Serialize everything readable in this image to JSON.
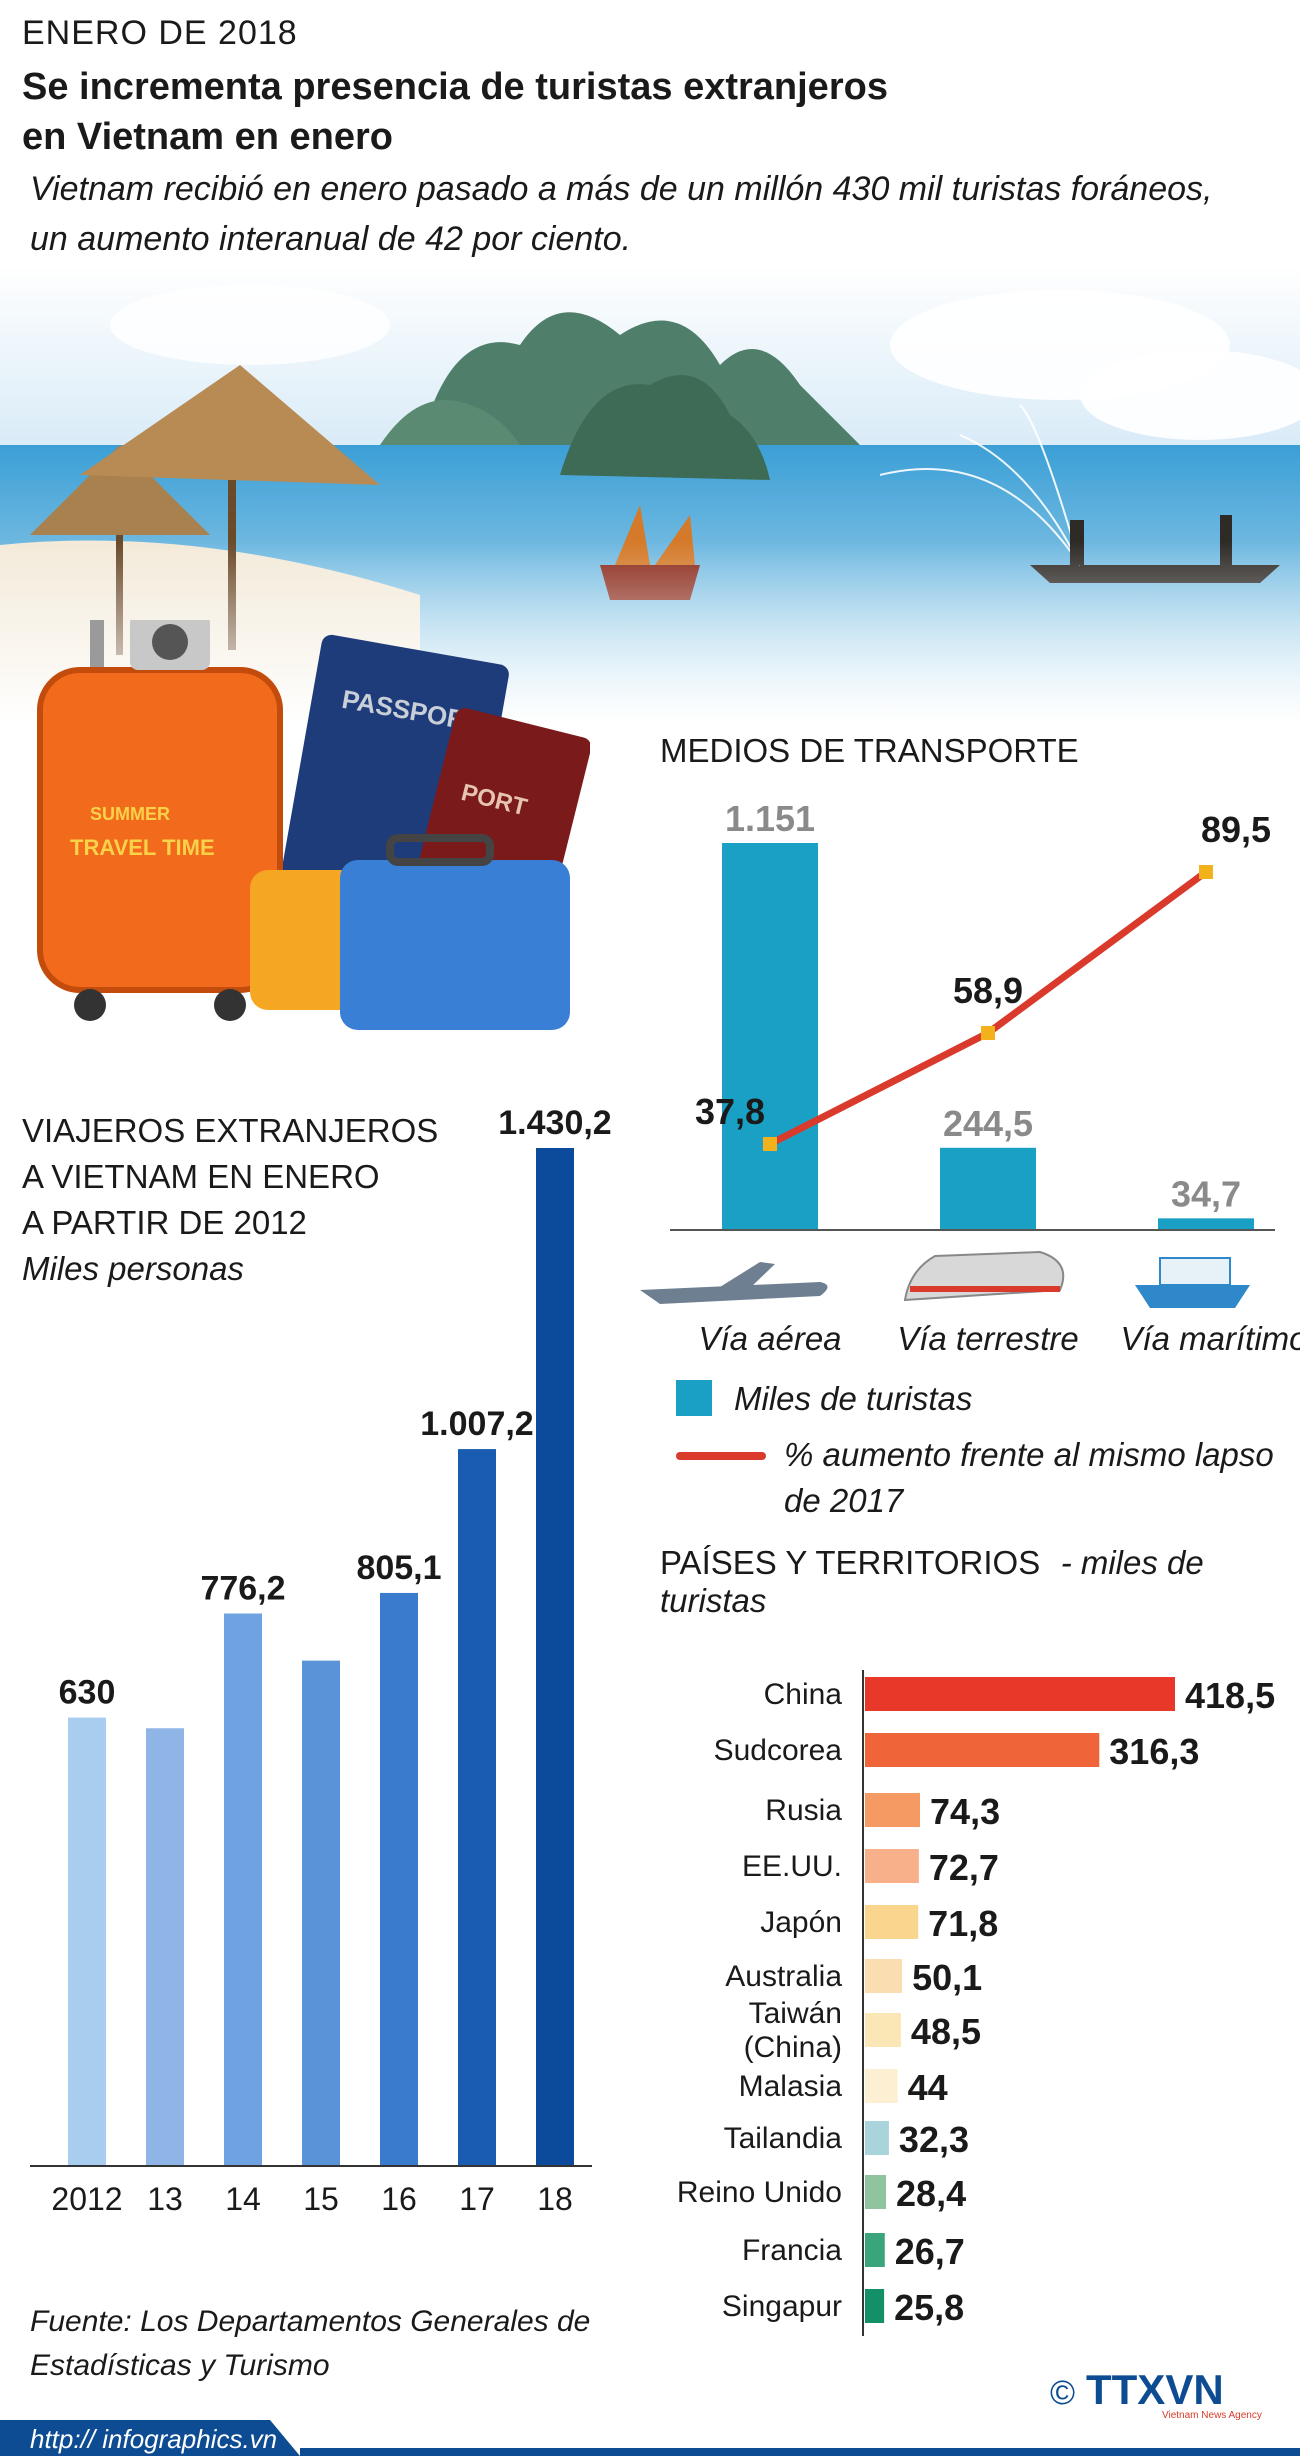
{
  "header": {
    "date": "ENERO DE 2018",
    "title_line1": "Se incrementa presencia de turistas extranjeros",
    "title_line2": "en Vietnam en enero",
    "subtitle_line1": "Vietnam recibió en enero pasado a más de un millón 430 mil turistas foráneos,",
    "subtitle_line2": "un aumento interanual de 42 por ciento."
  },
  "illustration": {
    "banner": "ha-long-bay-beach-photo",
    "passport_text": "PASSPORT",
    "passport2_text": "PORT",
    "suitcase_text_1": "SUMMER",
    "suitcase_text_2": "TRAVEL TIME"
  },
  "chart_data": [
    {
      "type": "bar",
      "title_lines": [
        "VIAJEROS EXTRANJEROS",
        "A VIETNAM EN ENERO",
        "A PARTIR DE 2012"
      ],
      "units": "Miles personas",
      "categories": [
        "2012",
        "13",
        "14",
        "15",
        "16",
        "17",
        "18"
      ],
      "values": [
        630,
        615,
        776.2,
        710,
        805.1,
        1007.2,
        1430.2
      ],
      "data_labels": [
        "630",
        "",
        "776,2",
        "",
        "805,1",
        "1.007,2",
        "1.430,2"
      ],
      "colors": [
        "#a9cdee",
        "#8fb5e6",
        "#6fa2e0",
        "#5a93d8",
        "#3b7bcd",
        "#1a5cb2",
        "#0c4a9c"
      ],
      "ylim": [
        0,
        1430.2
      ]
    },
    {
      "type": "bar",
      "title": "MEDIOS DE TRANSPORTE",
      "categories": [
        "Vía aérea",
        "Vía terrestre",
        "Vía marítimo"
      ],
      "icons": [
        "airplane-icon",
        "train-icon",
        "cruise-ship-icon"
      ],
      "series": [
        {
          "name": "Miles de turistas",
          "type": "bar",
          "values": [
            1151,
            244.5,
            34.7
          ],
          "labels": [
            "1.151",
            "244,5",
            "34,7"
          ],
          "color": "#1aa0c4"
        },
        {
          "name": "% aumento frente al mismo lapso de 2017",
          "type": "line",
          "values": [
            37.8,
            58.9,
            89.5
          ],
          "labels": [
            "37,8",
            "58,9",
            "89,5"
          ],
          "color": "#d93a2b"
        }
      ],
      "legend": {
        "bar_label": "Miles de turistas",
        "line_label_1": "% aumento frente al mismo lapso",
        "line_label_2": "de 2017"
      }
    },
    {
      "type": "bar",
      "orientation": "horizontal",
      "title": "PAÍSES Y TERRITORIOS",
      "units": "- miles de turistas",
      "categories": [
        "China",
        "Sudcorea",
        "Rusia",
        "EE.UU.",
        "Japón",
        "Australia",
        "Taiwán (China)",
        "Malasia",
        "Tailandia",
        "Reino Unido",
        "Francia",
        "Singapur"
      ],
      "category_lines": [
        [
          "China"
        ],
        [
          "Sudcorea"
        ],
        [
          "Rusia"
        ],
        [
          "EE.UU."
        ],
        [
          "Japón"
        ],
        [
          "Australia"
        ],
        [
          "Taiwán",
          "(China)"
        ],
        [
          "Malasia"
        ],
        [
          "Tailandia"
        ],
        [
          "Reino Unido"
        ],
        [
          "Francia"
        ],
        [
          "Singapur"
        ]
      ],
      "values": [
        418.5,
        316.3,
        74.3,
        72.7,
        71.8,
        50.1,
        48.5,
        44,
        32.3,
        28.4,
        26.7,
        25.8
      ],
      "labels": [
        "418,5",
        "316,3",
        "74,3",
        "72,7",
        "71,8",
        "50,1",
        "48,5",
        "44",
        "32,3",
        "28,4",
        "26,7",
        "25,8"
      ],
      "colors": [
        "#e8382a",
        "#f0643a",
        "#f59a63",
        "#f8b08a",
        "#f9d58e",
        "#faddb0",
        "#fbe7b6",
        "#fcefd2",
        "#a9d4dc",
        "#8fc49e",
        "#3aa57b",
        "#139068"
      ]
    }
  ],
  "footer": {
    "source_line1": "Fuente: Los Departamentos Generales de",
    "source_line2": "Estadísticas y Turismo",
    "url": "http:// infographics.vn",
    "copyright": "©",
    "logo_text": "TTXVN",
    "logo_sub": "Vietnam News Agency"
  }
}
